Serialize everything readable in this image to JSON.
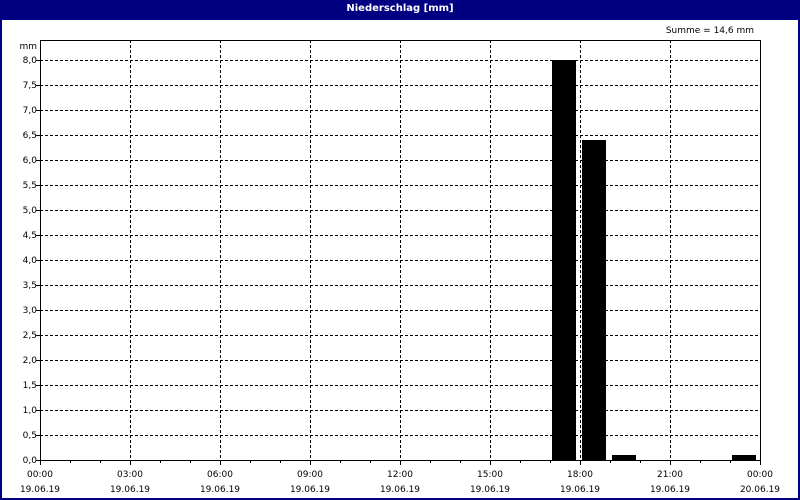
{
  "window": {
    "title": "Niederschlag [mm]"
  },
  "chart_data": {
    "type": "bar",
    "title": "Niederschlag [mm]",
    "ylabel": "mm",
    "annotation": "Summe = 14,6 mm",
    "ylim": [
      0,
      8.4
    ],
    "yticks": [
      "0,0",
      "0,5",
      "1,0",
      "1,5",
      "2,0",
      "2,5",
      "3,0",
      "3,5",
      "4,0",
      "4,5",
      "5,0",
      "5,5",
      "6,0",
      "6,5",
      "7,0",
      "7,5",
      "8,0"
    ],
    "xrange_hours": [
      0,
      24
    ],
    "xticks": [
      {
        "time": "00:00",
        "date": "19.06.19"
      },
      {
        "time": "03:00",
        "date": "19.06.19"
      },
      {
        "time": "06:00",
        "date": "19.06.19"
      },
      {
        "time": "09:00",
        "date": "19.06.19"
      },
      {
        "time": "12:00",
        "date": "19.06.19"
      },
      {
        "time": "15:00",
        "date": "19.06.19"
      },
      {
        "time": "18:00",
        "date": "19.06.19"
      },
      {
        "time": "21:00",
        "date": "19.06.19"
      },
      {
        "time": "00:00",
        "date": "20.06.19"
      }
    ],
    "bars": [
      {
        "start": "17:00",
        "end": "18:00",
        "value": 8.0
      },
      {
        "start": "18:00",
        "end": "19:00",
        "value": 6.4
      },
      {
        "start": "19:00",
        "end": "20:00",
        "value": 0.1
      },
      {
        "start": "23:00",
        "end": "00:00",
        "value": 0.1
      }
    ],
    "grid": true,
    "bar_color": "#000000",
    "frame_color": "#000080"
  }
}
